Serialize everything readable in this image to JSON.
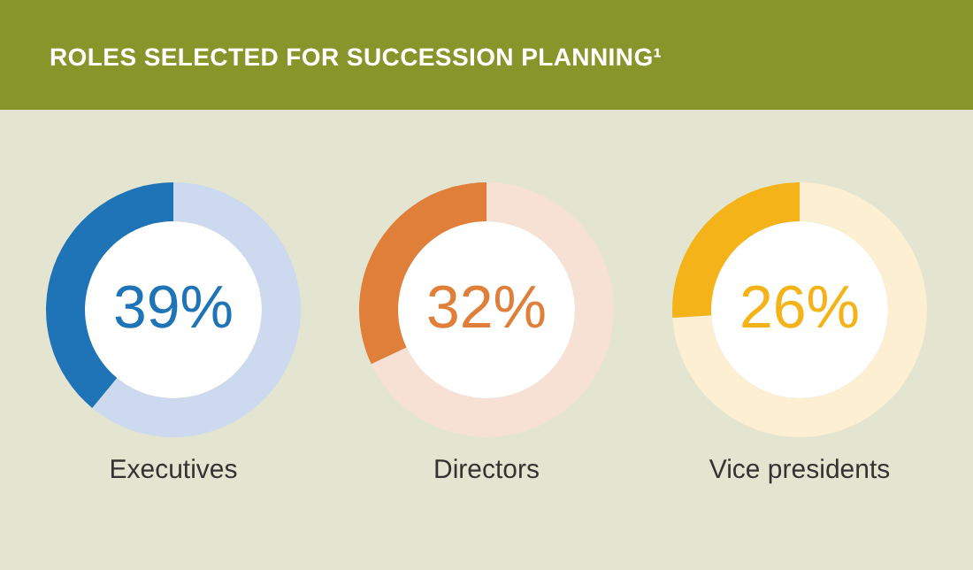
{
  "chart_data": [
    {
      "type": "donut",
      "title": "ROLES SELECTED FOR SUCCESSION PLANNING¹",
      "xlabel": "Executives",
      "categories": [
        null,
        null
      ],
      "values": [
        61,
        39
      ],
      "colors": [
        "#ccd9ee",
        "#1f73b7"
      ],
      "value_labels": [
        null,
        "39%"
      ]
    },
    {
      "type": "donut",
      "xlabel": "Directors",
      "categories": [
        null,
        null
      ],
      "values": [
        68,
        32
      ],
      "colors": [
        "#f6e1d4",
        "#e07f3a"
      ],
      "value_labels": [
        null,
        "32%"
      ]
    },
    {
      "type": "donut",
      "xlabel": "Vice presidents",
      "categories": [
        null,
        null
      ],
      "values": [
        74,
        26
      ],
      "colors": [
        "#fdefd2",
        "#f5b31a"
      ],
      "value_labels": [
        null,
        "26%"
      ]
    }
  ]
}
